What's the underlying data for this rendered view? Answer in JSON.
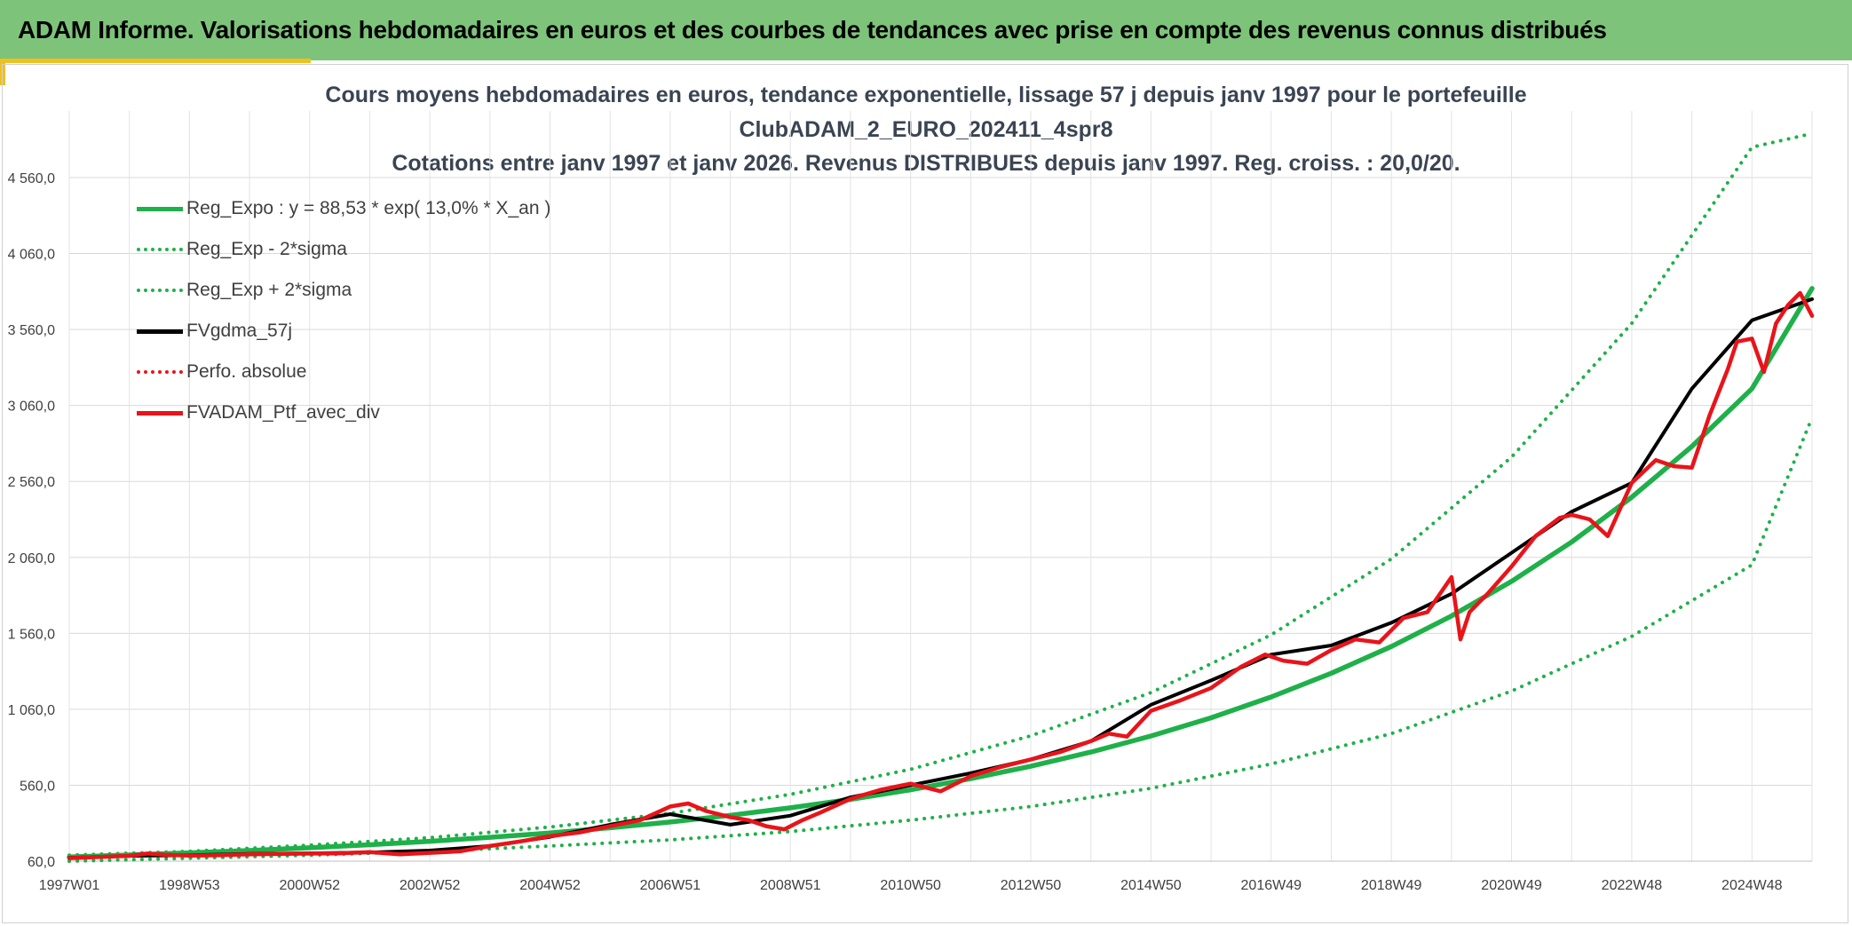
{
  "banner": {
    "title": "ADAM Informe. Valorisations hebdomadaires en euros et des courbes de tendances avec prise en compte des revenus connus distribués"
  },
  "colors": {
    "banner": "#7dc47a",
    "accent": "#f0c020",
    "trend": "#1fb04a",
    "smoothed": "#000000",
    "portfolio": "#e8141a"
  },
  "chart_data": {
    "type": "line",
    "title_lines": [
      "Cours moyens hebdomadaires en euros, tendance exponentielle, lissage 57 j depuis janv 1997 pour le portefeuille",
      "ClubADAM_2_EURO_202411_4spr8",
      "Cotations entre janv 1997 et janv 2026. Revenus DISTRIBUES depuis janv 1997. Reg. croiss. : 20,0/20."
    ],
    "xlabel": "",
    "ylabel": "",
    "x_ticks": [
      "1997W01",
      "1998W53",
      "2000W52",
      "2002W52",
      "2004W52",
      "2006W51",
      "2008W51",
      "2010W50",
      "2012W50",
      "2014W50",
      "2016W49",
      "2018W49",
      "2020W49",
      "2022W48",
      "2024W48"
    ],
    "y_ticks": [
      "60,0",
      "560,0",
      "1 060,0",
      "1 560,0",
      "2 060,0",
      "2 560,0",
      "3 060,0",
      "3 560,0",
      "4 060,0",
      "4 560,0"
    ],
    "xlim": [
      1997.0,
      2026.0
    ],
    "ylim": [
      60,
      4760
    ],
    "grid": true,
    "legend_position": "top-left",
    "legend": [
      {
        "label": "Reg_Expo : y = 88,53 * exp( 13,0% *  X_an )",
        "color": "#1fb04a",
        "style": "solid"
      },
      {
        "label": "Reg_Exp - 2*sigma",
        "color": "#1fb04a",
        "style": "dotted"
      },
      {
        "label": "Reg_Exp + 2*sigma",
        "color": "#1fb04a",
        "style": "dotted"
      },
      {
        "label": "FVgdma_57j",
        "color": "#000000",
        "style": "solid"
      },
      {
        "label": "Perfo. absolue",
        "color": "#e8141a",
        "style": "dotted"
      },
      {
        "label": "FVADAM_Ptf_avec_div",
        "color": "#e8141a",
        "style": "solid"
      }
    ],
    "series": [
      {
        "name": "Reg_Expo : y = 88,53 * exp( 13,0% *  X_an )",
        "color": "#1fb04a",
        "style": "solid",
        "x": [
          1997,
          1998,
          1999,
          2000,
          2001,
          2002,
          2003,
          2004,
          2005,
          2006,
          2007,
          2008,
          2009,
          2010,
          2011,
          2012,
          2013,
          2014,
          2015,
          2016,
          2017,
          2018,
          2019,
          2020,
          2021,
          2022,
          2023,
          2024,
          2025,
          2026
        ],
        "values": [
          88,
          101,
          115,
          130,
          148,
          168,
          191,
          217,
          246,
          280,
          318,
          362,
          411,
          467,
          530,
          603,
          685,
          778,
          884,
          1004,
          1141,
          1297,
          1473,
          1674,
          1902,
          2161,
          2456,
          2790,
          3170,
          3830
        ]
      },
      {
        "name": "Reg_Exp - 2*sigma",
        "color": "#1fb04a",
        "style": "dotted",
        "x": [
          1997,
          1999,
          2001,
          2003,
          2005,
          2007,
          2009,
          2011,
          2013,
          2015,
          2017,
          2019,
          2021,
          2023,
          2025,
          2026
        ],
        "values": [
          60,
          80,
          100,
          125,
          160,
          200,
          255,
          330,
          420,
          540,
          700,
          900,
          1180,
          1540,
          2010,
          2980
        ]
      },
      {
        "name": "Reg_Exp + 2*sigma",
        "color": "#1fb04a",
        "style": "dotted",
        "x": [
          1997,
          1999,
          2001,
          2003,
          2005,
          2007,
          2009,
          2011,
          2013,
          2015,
          2017,
          2019,
          2021,
          2023,
          2025,
          2026
        ],
        "values": [
          100,
          125,
          165,
          215,
          285,
          375,
          500,
          665,
          885,
          1170,
          1550,
          2050,
          2720,
          3600,
          4760,
          4850
        ]
      },
      {
        "name": "FVgdma_57j",
        "color": "#000000",
        "style": "solid",
        "x": [
          1997,
          1998,
          1999,
          2000,
          2001,
          2002,
          2003,
          2004,
          2005,
          2006,
          2007,
          2008,
          2009,
          2010,
          2011,
          2012,
          2013,
          2014,
          2015,
          2016,
          2017,
          2018,
          2019,
          2020,
          2021,
          2022,
          2023,
          2024,
          2025,
          2026
        ],
        "values": [
          82,
          95,
          100,
          108,
          112,
          118,
          130,
          160,
          220,
          300,
          370,
          300,
          360,
          480,
          560,
          640,
          730,
          850,
          1090,
          1250,
          1420,
          1480,
          1630,
          1820,
          2090,
          2360,
          2550,
          3170,
          3620,
          3760
        ]
      },
      {
        "name": "Perfo. absolue",
        "color": "#e8141a",
        "style": "dotted",
        "x": [
          1997,
          2000,
          2003,
          2006,
          2009,
          2012,
          2015,
          2018,
          2021,
          2024,
          2026
        ],
        "values": [
          80,
          105,
          125,
          290,
          350,
          630,
          1080,
          1450,
          2080,
          3150,
          3700
        ]
      },
      {
        "name": "FVADAM_Ptf_avec_div",
        "color": "#e8141a",
        "style": "solid",
        "x": [
          1997.0,
          1997.5,
          1998.0,
          1998.3,
          1998.6,
          1999.0,
          1999.5,
          2000.0,
          2000.5,
          2001.0,
          2001.5,
          2002.0,
          2002.5,
          2003.0,
          2003.5,
          2004.0,
          2004.5,
          2005.0,
          2005.5,
          2006.0,
          2006.5,
          2007.0,
          2007.3,
          2007.6,
          2008.0,
          2008.3,
          2008.6,
          2008.9,
          2009.2,
          2009.5,
          2010.0,
          2010.5,
          2011.0,
          2011.5,
          2012.0,
          2012.5,
          2013.0,
          2013.5,
          2014.0,
          2014.3,
          2014.6,
          2015.0,
          2015.5,
          2016.0,
          2016.5,
          2016.9,
          2017.2,
          2017.6,
          2018.0,
          2018.4,
          2018.8,
          2019.2,
          2019.6,
          2020.0,
          2020.15,
          2020.3,
          2020.6,
          2021.0,
          2021.4,
          2021.8,
          2022.0,
          2022.3,
          2022.6,
          2023.0,
          2023.4,
          2023.7,
          2024.0,
          2024.3,
          2024.6,
          2024.75,
          2025.0,
          2025.2,
          2025.4,
          2025.6,
          2025.8,
          2026.0
        ],
        "values": [
          80,
          88,
          95,
          110,
          102,
          97,
          100,
          105,
          108,
          110,
          112,
          120,
          105,
          115,
          125,
          160,
          190,
          225,
          250,
          290,
          330,
          420,
          440,
          390,
          350,
          330,
          290,
          270,
          330,
          380,
          470,
          530,
          570,
          520,
          620,
          680,
          730,
          780,
          850,
          900,
          880,
          1050,
          1120,
          1200,
          1340,
          1420,
          1380,
          1360,
          1450,
          1520,
          1500,
          1660,
          1700,
          1930,
          1520,
          1700,
          1820,
          2000,
          2200,
          2320,
          2340,
          2310,
          2200,
          2550,
          2700,
          2660,
          2650,
          3000,
          3300,
          3480,
          3500,
          3280,
          3600,
          3720,
          3800,
          3650
        ]
      }
    ]
  }
}
